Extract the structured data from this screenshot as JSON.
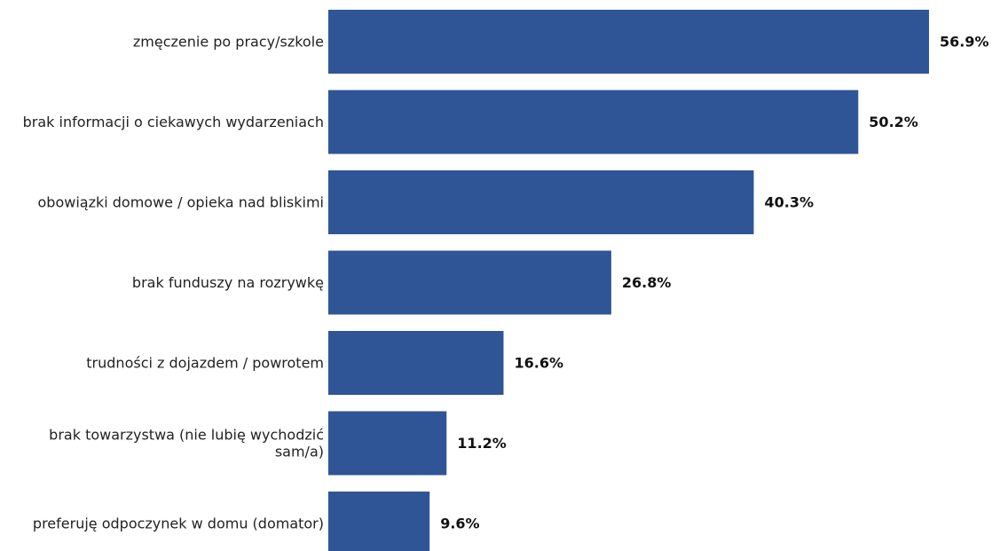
{
  "chart_data": {
    "type": "bar",
    "orientation": "horizontal",
    "title": "",
    "xlabel": "",
    "ylabel": "",
    "categories": [
      [
        "zmęczenie po pracy/szkole"
      ],
      [
        "brak informacji o ciekawych wydarzeniach"
      ],
      [
        "obowiązki domowe / opieka nad bliskimi"
      ],
      [
        "brak funduszy na rozrywkę"
      ],
      [
        "trudności z dojazdem / powrotem"
      ],
      [
        "brak towarzystwa (nie lubię wychodzić",
        "sam/a)"
      ],
      [
        "preferuję odpoczynek w domu (domator)"
      ]
    ],
    "values": [
      56.9,
      50.2,
      40.3,
      26.8,
      16.6,
      11.2,
      9.6
    ],
    "value_labels": [
      "56.9%",
      "50.2%",
      "40.3%",
      "26.8%",
      "16.6%",
      "11.2%",
      "9.6%"
    ],
    "xlim": [
      0,
      56.9
    ],
    "grid": false,
    "legend": "none",
    "colors": {
      "bar": "#2f5597",
      "category_text": "#222222",
      "value_text": "#111111"
    }
  }
}
